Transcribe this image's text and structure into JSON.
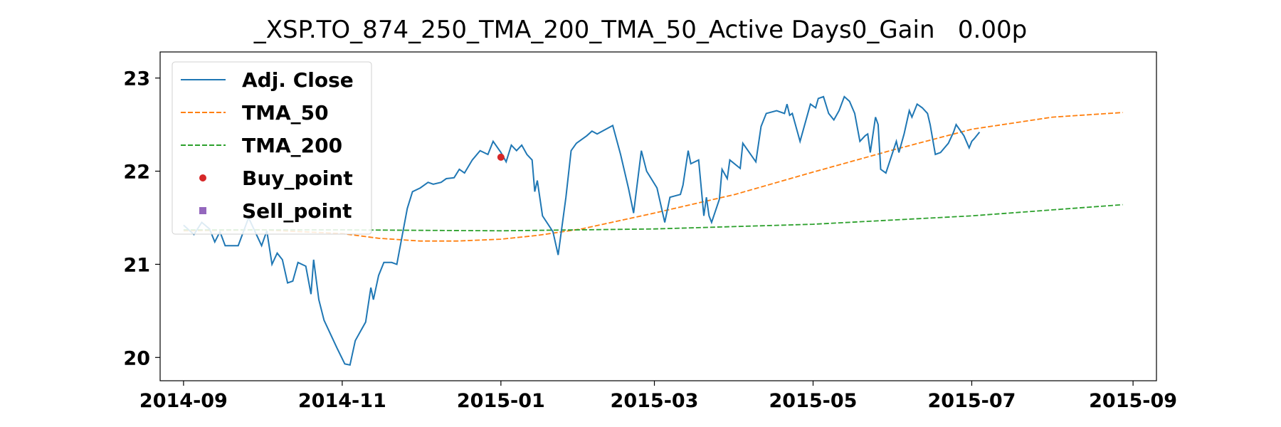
{
  "chart_data": {
    "type": "line",
    "title": "_XSP.TO_874_250_TMA_200_TMA_50_Active Days0_Gain   0.00p",
    "xlabel": "",
    "ylabel": "",
    "x_ticks": [
      "2014-09",
      "2014-11",
      "2015-01",
      "2015-03",
      "2015-05",
      "2015-07",
      "2015-09"
    ],
    "y_ticks": [
      "20",
      "21",
      "22",
      "23"
    ],
    "xlim": [
      "2014-08-23",
      "2015-09-10"
    ],
    "ylim": [
      19.75,
      23.28
    ],
    "grid": false,
    "legend_position": "upper left",
    "series": [
      {
        "name": "Adj. Close",
        "color": "#1f77b4",
        "style": "solid",
        "points": [
          [
            "2014-09-01",
            21.42
          ],
          [
            "2014-09-05",
            21.32
          ],
          [
            "2014-09-08",
            21.45
          ],
          [
            "2014-09-11",
            21.38
          ],
          [
            "2014-09-13",
            21.24
          ],
          [
            "2014-09-15",
            21.35
          ],
          [
            "2014-09-17",
            21.2
          ],
          [
            "2014-09-22",
            21.2
          ],
          [
            "2014-09-26",
            21.5
          ],
          [
            "2014-10-01",
            21.2
          ],
          [
            "2014-10-03",
            21.36
          ],
          [
            "2014-10-05",
            21.0
          ],
          [
            "2014-10-07",
            21.12
          ],
          [
            "2014-10-09",
            21.05
          ],
          [
            "2014-10-11",
            20.8
          ],
          [
            "2014-10-13",
            20.82
          ],
          [
            "2014-10-15",
            21.02
          ],
          [
            "2014-10-18",
            20.98
          ],
          [
            "2014-10-20",
            20.68
          ],
          [
            "2014-10-21",
            21.05
          ],
          [
            "2014-10-23",
            20.62
          ],
          [
            "2014-10-25",
            20.4
          ],
          [
            "2014-10-30",
            20.1
          ],
          [
            "2014-11-02",
            19.93
          ],
          [
            "2014-11-04",
            19.92
          ],
          [
            "2014-11-06",
            20.18
          ],
          [
            "2014-11-10",
            20.38
          ],
          [
            "2014-11-12",
            20.75
          ],
          [
            "2014-11-13",
            20.62
          ],
          [
            "2014-11-15",
            20.88
          ],
          [
            "2014-11-17",
            21.02
          ],
          [
            "2014-11-20",
            21.02
          ],
          [
            "2014-11-22",
            21.0
          ],
          [
            "2014-11-26",
            21.6
          ],
          [
            "2014-11-28",
            21.78
          ],
          [
            "2014-12-01",
            21.82
          ],
          [
            "2014-12-04",
            21.88
          ],
          [
            "2014-12-06",
            21.86
          ],
          [
            "2014-12-09",
            21.88
          ],
          [
            "2014-12-11",
            21.92
          ],
          [
            "2014-12-14",
            21.93
          ],
          [
            "2014-12-16",
            22.02
          ],
          [
            "2014-12-18",
            21.98
          ],
          [
            "2014-12-21",
            22.12
          ],
          [
            "2014-12-24",
            22.22
          ],
          [
            "2014-12-27",
            22.18
          ],
          [
            "2014-12-29",
            22.32
          ],
          [
            "2015-01-01",
            22.2
          ],
          [
            "2015-01-03",
            22.1
          ],
          [
            "2015-01-05",
            22.28
          ],
          [
            "2015-01-07",
            22.22
          ],
          [
            "2015-01-09",
            22.28
          ],
          [
            "2015-01-11",
            22.18
          ],
          [
            "2015-01-13",
            22.12
          ],
          [
            "2015-01-14",
            21.78
          ],
          [
            "2015-01-15",
            21.9
          ],
          [
            "2015-01-17",
            21.52
          ],
          [
            "2015-01-21",
            21.35
          ],
          [
            "2015-01-23",
            21.1
          ],
          [
            "2015-01-26",
            21.72
          ],
          [
            "2015-01-28",
            22.22
          ],
          [
            "2015-01-30",
            22.3
          ],
          [
            "2015-02-03",
            22.38
          ],
          [
            "2015-02-05",
            22.43
          ],
          [
            "2015-02-07",
            22.4
          ],
          [
            "2015-02-13",
            22.49
          ],
          [
            "2015-02-16",
            22.18
          ],
          [
            "2015-02-19",
            21.82
          ],
          [
            "2015-02-21",
            21.55
          ],
          [
            "2015-02-24",
            22.22
          ],
          [
            "2015-02-26",
            22.0
          ],
          [
            "2015-03-02",
            21.82
          ],
          [
            "2015-03-05",
            21.45
          ],
          [
            "2015-03-07",
            21.72
          ],
          [
            "2015-03-11",
            21.75
          ],
          [
            "2015-03-12",
            21.85
          ],
          [
            "2015-03-14",
            22.22
          ],
          [
            "2015-03-15",
            22.08
          ],
          [
            "2015-03-18",
            22.12
          ],
          [
            "2015-03-20",
            21.52
          ],
          [
            "2015-03-21",
            21.72
          ],
          [
            "2015-03-22",
            21.52
          ],
          [
            "2015-03-23",
            21.45
          ],
          [
            "2015-03-26",
            21.7
          ],
          [
            "2015-03-27",
            22.02
          ],
          [
            "2015-03-29",
            21.92
          ],
          [
            "2015-03-30",
            22.12
          ],
          [
            "2015-04-03",
            22.03
          ],
          [
            "2015-04-04",
            22.3
          ],
          [
            "2015-04-06",
            22.22
          ],
          [
            "2015-04-09",
            22.1
          ],
          [
            "2015-04-11",
            22.48
          ],
          [
            "2015-04-13",
            22.62
          ],
          [
            "2015-04-17",
            22.65
          ],
          [
            "2015-04-20",
            22.62
          ],
          [
            "2015-04-21",
            22.72
          ],
          [
            "2015-04-22",
            22.6
          ],
          [
            "2015-04-23",
            22.62
          ],
          [
            "2015-04-26",
            22.32
          ],
          [
            "2015-04-30",
            22.72
          ],
          [
            "2015-05-02",
            22.68
          ],
          [
            "2015-05-03",
            22.78
          ],
          [
            "2015-05-05",
            22.8
          ],
          [
            "2015-05-07",
            22.62
          ],
          [
            "2015-05-09",
            22.55
          ],
          [
            "2015-05-11",
            22.65
          ],
          [
            "2015-05-13",
            22.8
          ],
          [
            "2015-05-15",
            22.75
          ],
          [
            "2015-05-17",
            22.62
          ],
          [
            "2015-05-19",
            22.32
          ],
          [
            "2015-05-21",
            22.38
          ],
          [
            "2015-05-22",
            22.4
          ],
          [
            "2015-05-23",
            22.2
          ],
          [
            "2015-05-25",
            22.58
          ],
          [
            "2015-05-26",
            22.5
          ],
          [
            "2015-05-27",
            22.02
          ],
          [
            "2015-05-29",
            21.98
          ],
          [
            "2015-06-02",
            22.32
          ],
          [
            "2015-06-03",
            22.2
          ],
          [
            "2015-06-05",
            22.4
          ],
          [
            "2015-06-07",
            22.65
          ],
          [
            "2015-06-08",
            22.58
          ],
          [
            "2015-06-10",
            22.72
          ],
          [
            "2015-06-12",
            22.68
          ],
          [
            "2015-06-14",
            22.62
          ],
          [
            "2015-06-15",
            22.5
          ],
          [
            "2015-06-17",
            22.18
          ],
          [
            "2015-06-19",
            22.2
          ],
          [
            "2015-06-22",
            22.3
          ],
          [
            "2015-06-24",
            22.42
          ],
          [
            "2015-06-25",
            22.5
          ],
          [
            "2015-06-28",
            22.38
          ],
          [
            "2015-06-30",
            22.25
          ],
          [
            "2015-07-01",
            22.32
          ],
          [
            "2015-07-02",
            22.35
          ],
          [
            "2015-07-04",
            22.42
          ]
        ]
      },
      {
        "name": "TMA_50",
        "color": "#ff7f0e",
        "style": "dashed",
        "points": [
          [
            "2014-09-01",
            21.36
          ],
          [
            "2014-10-01",
            21.37
          ],
          [
            "2014-11-01",
            21.33
          ],
          [
            "2014-11-15",
            21.28
          ],
          [
            "2014-12-01",
            21.25
          ],
          [
            "2014-12-15",
            21.25
          ],
          [
            "2015-01-01",
            21.27
          ],
          [
            "2015-01-15",
            21.31
          ],
          [
            "2015-02-01",
            21.38
          ],
          [
            "2015-03-01",
            21.55
          ],
          [
            "2015-04-01",
            21.75
          ],
          [
            "2015-05-01",
            21.99
          ],
          [
            "2015-06-01",
            22.23
          ],
          [
            "2015-07-01",
            22.45
          ],
          [
            "2015-08-01",
            22.58
          ],
          [
            "2015-08-28",
            22.63
          ]
        ]
      },
      {
        "name": "TMA_200",
        "color": "#2ca02c",
        "style": "dashed",
        "points": [
          [
            "2014-09-01",
            21.37
          ],
          [
            "2014-11-01",
            21.37
          ],
          [
            "2015-01-01",
            21.36
          ],
          [
            "2015-03-01",
            21.38
          ],
          [
            "2015-05-01",
            21.43
          ],
          [
            "2015-07-01",
            21.52
          ],
          [
            "2015-08-28",
            21.64
          ]
        ]
      }
    ],
    "markers": [
      {
        "name": "Buy_point",
        "color": "#d62728",
        "shape": "circle",
        "points": [
          [
            "2015-01-01",
            22.15
          ]
        ]
      },
      {
        "name": "Sell_point",
        "color": "#9467bd",
        "shape": "square",
        "points": []
      }
    ]
  }
}
